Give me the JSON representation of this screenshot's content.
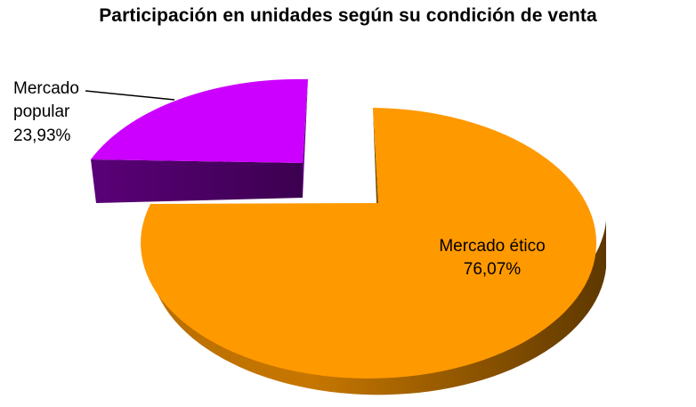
{
  "chart_data": {
    "type": "pie",
    "title": "Participación en unidades según su condición de venta",
    "slices": [
      {
        "label": "Mercado ético",
        "value": 76.07,
        "value_label": "76,07%",
        "color": "#ff9900"
      },
      {
        "label": "Mercado popular",
        "value": 23.93,
        "value_label": "23,93%",
        "color": "#cc00ff",
        "label_lines": [
          "Mercado",
          "popular"
        ]
      }
    ],
    "three_d": true,
    "exploded": true,
    "legend": "none"
  }
}
